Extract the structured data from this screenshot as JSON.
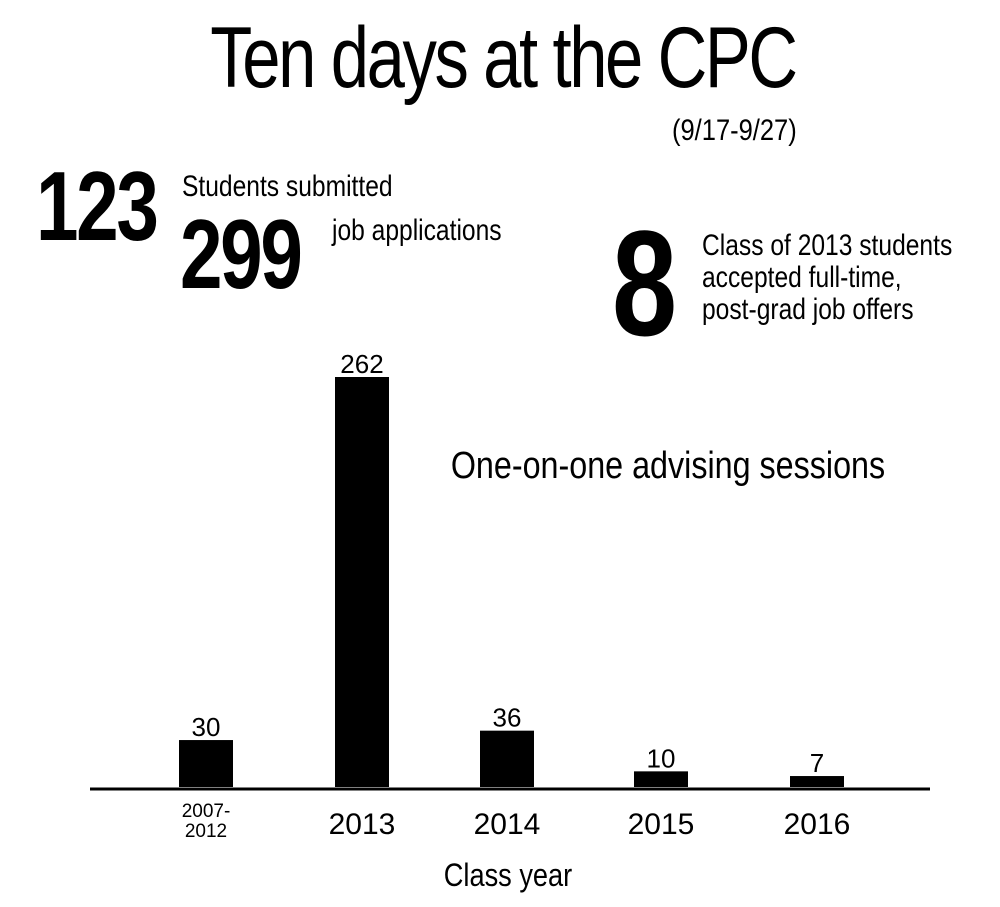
{
  "header": {
    "title": "Ten days at the CPC",
    "subtitle": "(9/17-9/27)"
  },
  "stats": {
    "students_count": "123",
    "students_label": "Students submitted",
    "applications_count": "299",
    "applications_label": "job applications",
    "offers_count": "8",
    "offers_label_lines": [
      "Class of 2013 students",
      "accepted full-time,",
      "post-grad job offers"
    ]
  },
  "chart_data": {
    "type": "bar",
    "title": "One-on-one advising sessions",
    "xlabel": "Class year",
    "ylabel": "",
    "categories": [
      "2007-2012",
      "2013",
      "2014",
      "2015",
      "2016"
    ],
    "category_lines": [
      [
        "2007-",
        "2012"
      ],
      [
        "2013"
      ],
      [
        "2014"
      ],
      [
        "2015"
      ],
      [
        "2016"
      ]
    ],
    "values": [
      30,
      262,
      36,
      10,
      7
    ],
    "ylim": [
      0,
      262
    ],
    "grid": false,
    "bar_color": "#000000"
  }
}
